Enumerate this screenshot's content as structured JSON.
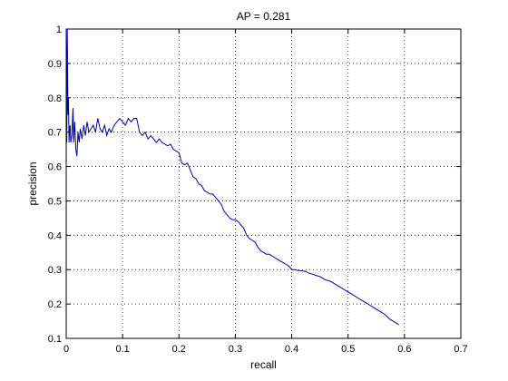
{
  "chart_data": {
    "type": "line",
    "title": "AP = 0.281",
    "xlabel": "recall",
    "ylabel": "precision",
    "xlim": [
      0,
      0.7
    ],
    "ylim": [
      0.1,
      1
    ],
    "grid": true,
    "x_ticks": [
      "0",
      "0.1",
      "0.2",
      "0.3",
      "0.4",
      "0.5",
      "0.6",
      "0.7"
    ],
    "y_ticks": [
      "0.1",
      "0.2",
      "0.3",
      "0.4",
      "0.5",
      "0.6",
      "0.7",
      "0.8",
      "0.9",
      "1"
    ],
    "line_color": "#0000a0",
    "series": [
      {
        "x": [
          0.0,
          0.001,
          0.002,
          0.003,
          0.004,
          0.005,
          0.006,
          0.007,
          0.008,
          0.01,
          0.012,
          0.013,
          0.015,
          0.017,
          0.019,
          0.021,
          0.023,
          0.025,
          0.028,
          0.031,
          0.034,
          0.037,
          0.04,
          0.044,
          0.048,
          0.052,
          0.056,
          0.06,
          0.064,
          0.068,
          0.072,
          0.076,
          0.08,
          0.085,
          0.09,
          0.095,
          0.1,
          0.105,
          0.11,
          0.115,
          0.12,
          0.125,
          0.13,
          0.135,
          0.14,
          0.145,
          0.15,
          0.155,
          0.16,
          0.165,
          0.17,
          0.175,
          0.18,
          0.185,
          0.19,
          0.195,
          0.2,
          0.205,
          0.21,
          0.215,
          0.22,
          0.225,
          0.23,
          0.235,
          0.24,
          0.245,
          0.25,
          0.255,
          0.26,
          0.265,
          0.27,
          0.275,
          0.28,
          0.285,
          0.29,
          0.295,
          0.3,
          0.305,
          0.31,
          0.315,
          0.32,
          0.325,
          0.33,
          0.335,
          0.34,
          0.345,
          0.35,
          0.355,
          0.36,
          0.365,
          0.37,
          0.375,
          0.38,
          0.385,
          0.39,
          0.395,
          0.4,
          0.405,
          0.41,
          0.415,
          0.42,
          0.425,
          0.43,
          0.435,
          0.44,
          0.445,
          0.45,
          0.455,
          0.46,
          0.465,
          0.47,
          0.475,
          0.48,
          0.485,
          0.49,
          0.495,
          0.5,
          0.505,
          0.51,
          0.515,
          0.52,
          0.525,
          0.53,
          0.535,
          0.54,
          0.545,
          0.55,
          0.555,
          0.56,
          0.565,
          0.57,
          0.575,
          0.58,
          0.585,
          0.59
        ],
        "y": [
          1.0,
          0.67,
          1.0,
          0.75,
          0.8,
          0.67,
          0.71,
          0.72,
          0.67,
          0.69,
          0.77,
          0.67,
          0.73,
          0.65,
          0.63,
          0.7,
          0.67,
          0.71,
          0.68,
          0.72,
          0.69,
          0.73,
          0.7,
          0.71,
          0.72,
          0.7,
          0.74,
          0.71,
          0.7,
          0.72,
          0.69,
          0.71,
          0.7,
          0.72,
          0.73,
          0.74,
          0.73,
          0.72,
          0.74,
          0.73,
          0.74,
          0.74,
          0.7,
          0.69,
          0.7,
          0.68,
          0.69,
          0.68,
          0.67,
          0.68,
          0.67,
          0.665,
          0.66,
          0.665,
          0.65,
          0.645,
          0.64,
          0.61,
          0.605,
          0.61,
          0.59,
          0.57,
          0.565,
          0.55,
          0.545,
          0.53,
          0.525,
          0.52,
          0.52,
          0.51,
          0.5,
          0.49,
          0.47,
          0.46,
          0.45,
          0.445,
          0.445,
          0.44,
          0.43,
          0.42,
          0.4,
          0.39,
          0.385,
          0.38,
          0.365,
          0.355,
          0.35,
          0.345,
          0.345,
          0.34,
          0.335,
          0.33,
          0.325,
          0.32,
          0.315,
          0.31,
          0.3,
          0.3,
          0.298,
          0.297,
          0.296,
          0.295,
          0.29,
          0.288,
          0.285,
          0.282,
          0.28,
          0.275,
          0.27,
          0.268,
          0.265,
          0.26,
          0.255,
          0.25,
          0.245,
          0.24,
          0.235,
          0.23,
          0.225,
          0.22,
          0.215,
          0.21,
          0.205,
          0.2,
          0.195,
          0.19,
          0.185,
          0.18,
          0.175,
          0.17,
          0.162,
          0.155,
          0.15,
          0.145,
          0.14
        ]
      }
    ]
  }
}
